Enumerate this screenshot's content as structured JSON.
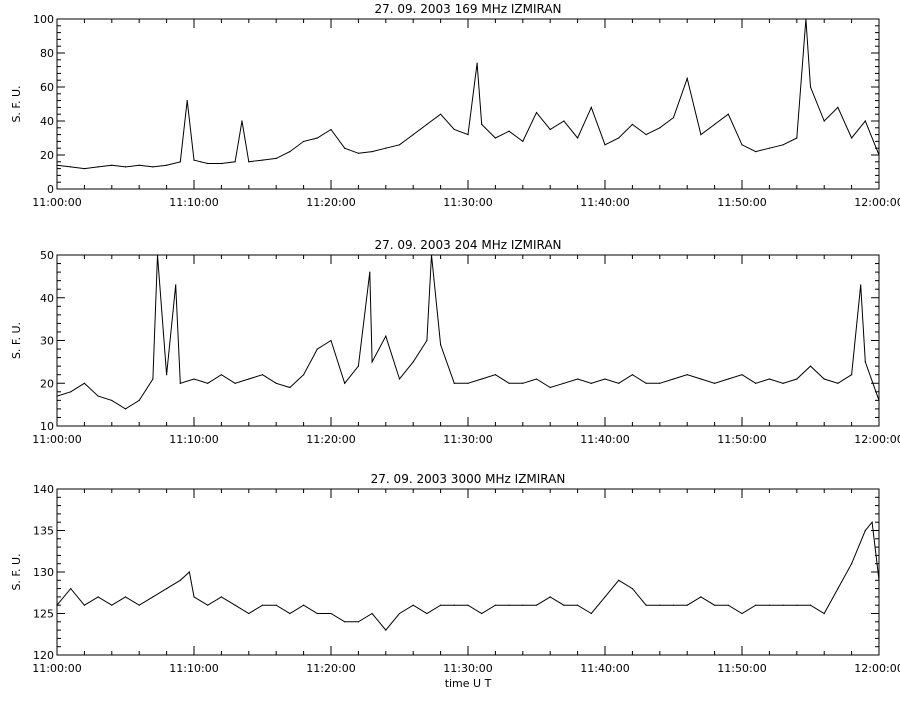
{
  "chart_data": [
    {
      "type": "line",
      "title": "27.  09.  2003    169 MHz    IZMIRAN",
      "ylabel": "S. F. U.",
      "xlabel": "",
      "ylim": [
        0,
        100
      ],
      "yticks": [
        0,
        20,
        40,
        60,
        80,
        100
      ],
      "xlim": [
        "11:00:00",
        "12:00:00"
      ],
      "xticks": [
        "11:00:00",
        "11:10:00",
        "11:20:00",
        "11:30:00",
        "11:40:00",
        "11:50:00",
        "12:00:00"
      ],
      "grid": false,
      "series": [
        {
          "x": [
            "11:00:00",
            "11:01:00",
            "11:02:00",
            "11:03:00",
            "11:04:00",
            "11:05:00",
            "11:06:00",
            "11:07:00",
            "11:08:00",
            "11:09:00",
            "11:09:30",
            "11:10:00",
            "11:10:30",
            "11:11:00",
            "11:12:00",
            "11:13:00",
            "11:13:30",
            "11:14:00",
            "11:15:00",
            "11:16:00",
            "11:17:00",
            "11:18:00",
            "11:19:00",
            "11:20:00",
            "11:21:00",
            "11:22:00",
            "11:23:00",
            "11:24:00",
            "11:25:00",
            "11:26:00",
            "11:27:00",
            "11:28:00",
            "11:29:00",
            "11:30:00",
            "11:30:40",
            "11:31:00",
            "11:32:00",
            "11:33:00",
            "11:34:00",
            "11:35:00",
            "11:36:00",
            "11:37:00",
            "11:38:00",
            "11:39:00",
            "11:40:00",
            "11:41:00",
            "11:42:00",
            "11:43:00",
            "11:44:00",
            "11:45:00",
            "11:46:00",
            "11:47:00",
            "11:48:00",
            "11:49:00",
            "11:50:00",
            "11:51:00",
            "11:52:00",
            "11:53:00",
            "11:54:00",
            "11:54:40",
            "11:55:00",
            "11:56:00",
            "11:57:00",
            "11:58:00",
            "11:59:00",
            "12:00:00"
          ],
          "y": [
            14,
            13,
            12,
            13,
            14,
            13,
            14,
            13,
            14,
            16,
            52,
            17,
            16,
            15,
            15,
            16,
            40,
            16,
            17,
            18,
            22,
            28,
            30,
            35,
            24,
            21,
            22,
            24,
            26,
            32,
            38,
            44,
            35,
            32,
            74,
            38,
            30,
            34,
            28,
            45,
            35,
            40,
            30,
            48,
            26,
            30,
            38,
            32,
            36,
            42,
            65,
            32,
            38,
            44,
            26,
            22,
            24,
            26,
            30,
            100,
            60,
            40,
            48,
            30,
            40,
            20
          ]
        }
      ]
    },
    {
      "type": "line",
      "title": "27.  09.  2003    204 MHz    IZMIRAN",
      "ylabel": "S. F. U.",
      "xlabel": "",
      "ylim": [
        10,
        50
      ],
      "yticks": [
        10,
        20,
        30,
        40,
        50
      ],
      "xlim": [
        "11:00:00",
        "12:00:00"
      ],
      "xticks": [
        "11:00:00",
        "11:10:00",
        "11:20:00",
        "11:30:00",
        "11:40:00",
        "11:50:00",
        "12:00:00"
      ],
      "grid": false,
      "series": [
        {
          "x": [
            "11:00:00",
            "11:01:00",
            "11:02:00",
            "11:03:00",
            "11:04:00",
            "11:05:00",
            "11:06:00",
            "11:07:00",
            "11:07:20",
            "11:08:00",
            "11:08:40",
            "11:09:00",
            "11:10:00",
            "11:11:00",
            "11:12:00",
            "11:13:00",
            "11:14:00",
            "11:15:00",
            "11:16:00",
            "11:17:00",
            "11:18:00",
            "11:19:00",
            "11:20:00",
            "11:21:00",
            "11:22:00",
            "11:22:50",
            "11:23:00",
            "11:24:00",
            "11:25:00",
            "11:26:00",
            "11:27:00",
            "11:27:20",
            "11:28:00",
            "11:29:00",
            "11:30:00",
            "11:31:00",
            "11:32:00",
            "11:33:00",
            "11:34:00",
            "11:35:00",
            "11:36:00",
            "11:37:00",
            "11:38:00",
            "11:39:00",
            "11:40:00",
            "11:41:00",
            "11:42:00",
            "11:43:00",
            "11:44:00",
            "11:45:00",
            "11:46:00",
            "11:47:00",
            "11:48:00",
            "11:49:00",
            "11:50:00",
            "11:51:00",
            "11:52:00",
            "11:53:00",
            "11:54:00",
            "11:55:00",
            "11:56:00",
            "11:57:00",
            "11:58:00",
            "11:58:40",
            "11:59:00",
            "12:00:00"
          ],
          "y": [
            17,
            18,
            20,
            17,
            16,
            14,
            16,
            21,
            50,
            22,
            43,
            20,
            21,
            20,
            22,
            20,
            21,
            22,
            20,
            19,
            22,
            28,
            30,
            20,
            24,
            46,
            25,
            31,
            21,
            25,
            30,
            50,
            29,
            20,
            20,
            21,
            22,
            20,
            20,
            21,
            19,
            20,
            21,
            20,
            21,
            20,
            22,
            20,
            20,
            21,
            22,
            21,
            20,
            21,
            22,
            20,
            21,
            20,
            21,
            24,
            21,
            20,
            22,
            43,
            25,
            16
          ]
        }
      ]
    },
    {
      "type": "line",
      "title": "27.  09.  2003    3000 MHz    IZMIRAN",
      "ylabel": "S. F. U.",
      "xlabel": "time  U T",
      "ylim": [
        120,
        140
      ],
      "yticks": [
        120,
        125,
        130,
        135,
        140
      ],
      "xlim": [
        "11:00:00",
        "12:00:00"
      ],
      "xticks": [
        "11:00:00",
        "11:10:00",
        "11:20:00",
        "11:30:00",
        "11:40:00",
        "11:50:00",
        "12:00:00"
      ],
      "grid": false,
      "series": [
        {
          "x": [
            "11:00:00",
            "11:01:00",
            "11:02:00",
            "11:03:00",
            "11:04:00",
            "11:05:00",
            "11:06:00",
            "11:07:00",
            "11:08:00",
            "11:09:00",
            "11:09:40",
            "11:10:00",
            "11:11:00",
            "11:12:00",
            "11:13:00",
            "11:14:00",
            "11:15:00",
            "11:16:00",
            "11:17:00",
            "11:18:00",
            "11:19:00",
            "11:20:00",
            "11:21:00",
            "11:22:00",
            "11:23:00",
            "11:24:00",
            "11:25:00",
            "11:26:00",
            "11:27:00",
            "11:28:00",
            "11:29:00",
            "11:30:00",
            "11:31:00",
            "11:32:00",
            "11:33:00",
            "11:34:00",
            "11:35:00",
            "11:36:00",
            "11:37:00",
            "11:38:00",
            "11:39:00",
            "11:40:00",
            "11:41:00",
            "11:42:00",
            "11:43:00",
            "11:44:00",
            "11:45:00",
            "11:46:00",
            "11:47:00",
            "11:48:00",
            "11:49:00",
            "11:50:00",
            "11:51:00",
            "11:52:00",
            "11:53:00",
            "11:54:00",
            "11:55:00",
            "11:56:00",
            "11:57:00",
            "11:58:00",
            "11:59:00",
            "11:59:30",
            "12:00:00"
          ],
          "y": [
            126,
            128,
            126,
            127,
            126,
            127,
            126,
            127,
            128,
            129,
            130,
            127,
            126,
            127,
            126,
            125,
            126,
            126,
            125,
            126,
            125,
            125,
            124,
            124,
            125,
            123,
            125,
            126,
            125,
            126,
            126,
            126,
            125,
            126,
            126,
            126,
            126,
            127,
            126,
            126,
            125,
            127,
            129,
            128,
            126,
            126,
            126,
            126,
            127,
            126,
            126,
            125,
            126,
            126,
            126,
            126,
            126,
            125,
            128,
            131,
            135,
            136,
            129
          ]
        }
      ]
    }
  ]
}
